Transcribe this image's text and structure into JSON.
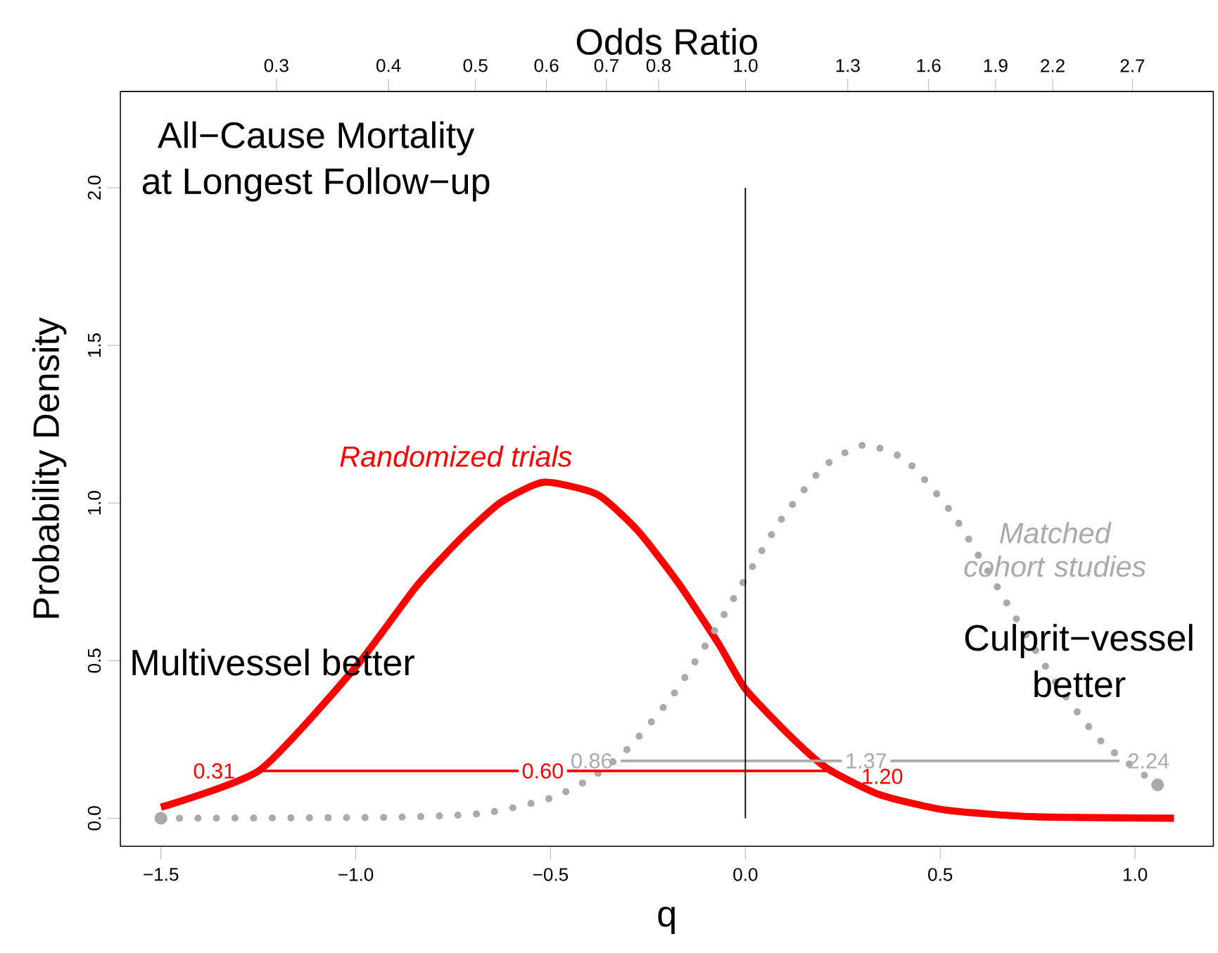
{
  "chart_data": {
    "type": "line",
    "title": "All−Cause Mortality",
    "subtitle": "at Longest Follow−up",
    "xlabel": "q",
    "ylabel": "Probability Density",
    "x2label": "Odds Ratio",
    "xlim": [
      -1.604,
      1.201
    ],
    "ylim": [
      -0.089,
      2.305
    ],
    "xticks": [
      {
        "value": -1.5,
        "label": "−1.5"
      },
      {
        "value": -1,
        "label": "−1.0"
      },
      {
        "value": -0.5,
        "label": "−0.5"
      },
      {
        "value": 0,
        "label": "0.0"
      },
      {
        "value": 0.5,
        "label": "0.5"
      },
      {
        "value": 1,
        "label": "1.0"
      }
    ],
    "yticks": [
      {
        "value": 0,
        "label": "0.0"
      },
      {
        "value": 0.5,
        "label": "0.5"
      },
      {
        "value": 1,
        "label": "1.0"
      },
      {
        "value": 1.5,
        "label": "1.5"
      },
      {
        "value": 2,
        "label": "2.0"
      }
    ],
    "x2lim": [
      0.201,
      3.323
    ],
    "x2ticks": [
      0.3,
      0.4,
      0.5,
      0.6,
      0.7,
      0.8,
      {
        "value": 1,
        "label": "1.0"
      },
      1.3,
      1.6,
      1.9,
      2.2,
      2.7
    ],
    "log": "x2",
    "marker": "none",
    "legend": false,
    "series": [
      {
        "name": "Randomized trials",
        "color": "#ff0000",
        "line_style": "solid",
        "x": [
          -1.5,
          -1.246,
          -1.002,
          -0.846,
          -0.732,
          -0.628,
          -0.517,
          -0.38,
          -0.276,
          -0.172,
          -0.069,
          0,
          0.119,
          0.209,
          0.344,
          0.514,
          0.739,
          1.1
        ],
        "values": [
          0.035,
          0.153,
          0.477,
          0.733,
          0.886,
          1.002,
          1.066,
          1.027,
          0.912,
          0.746,
          0.554,
          0.41,
          0.256,
          0.159,
          0.075,
          0.026,
          0.005,
          0
        ]
      },
      {
        "name": "Matched cohort studies",
        "color": "#aaaaaa",
        "line_style": "dotted",
        "x": [
          -1.5,
          -0.909,
          -0.67,
          -0.499,
          -0.395,
          -0.302,
          -0.188,
          -0.09,
          0,
          0.091,
          0.204,
          0.305,
          0.413,
          0.529,
          0.621,
          0.712,
          0.808,
          0.917,
          1.058
        ],
        "values": [
          0,
          0.003,
          0.016,
          0.064,
          0.128,
          0.22,
          0.387,
          0.573,
          0.76,
          0.946,
          1.118,
          1.184,
          1.135,
          0.97,
          0.787,
          0.598,
          0.41,
          0.239,
          0.106
        ]
      },
      {
        "color": "#ff0000",
        "line_style": "solid",
        "x": [
          -1.25,
          0.21
        ],
        "values": [
          0.15,
          0.15
        ]
      },
      {
        "color": "#aaaaaa",
        "line_style": "solid",
        "x": [
          -0.32,
          0.96
        ],
        "values": [
          0.182,
          0.182
        ]
      }
    ],
    "ref_lines": [
      {
        "axis": "x",
        "value": 0,
        "color": "#000000"
      }
    ],
    "annotations": [
      "Multivessel better",
      "Culprit−vessel better",
      {
        "text": "0.31",
        "x": -1.25,
        "y": 0.15
      },
      {
        "text": "0.60",
        "x": -0.52,
        "y": 0.15
      },
      {
        "text": "1.20",
        "x": 0.21,
        "y": 0.15
      },
      {
        "text": "0.86",
        "x": -0.32,
        "y": 0.182
      },
      {
        "text": "1.37",
        "x": 0.31,
        "y": 0.182
      },
      {
        "text": "2.24",
        "x": 0.96,
        "y": 0.182
      }
    ]
  }
}
